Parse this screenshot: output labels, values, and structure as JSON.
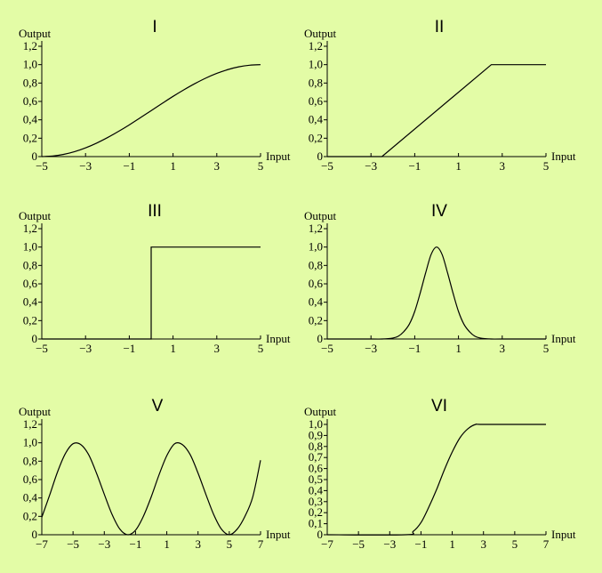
{
  "page": {
    "background": "#e3fca6"
  },
  "chart_data": [
    {
      "id": "I",
      "title": "I",
      "type": "line",
      "xlabel": "Input",
      "ylabel": "Output",
      "xlim": [
        -5,
        5
      ],
      "ylim": [
        0,
        1.2
      ],
      "x_ticks": [
        "-5",
        "-3",
        "-1",
        "1",
        "3",
        "5"
      ],
      "y_ticks": [
        "0",
        "0,2",
        "0,4",
        "0,6",
        "0,8",
        "1,0",
        "1,2"
      ],
      "x": [
        -5,
        -4.5,
        -4,
        -3.5,
        -3,
        -2.5,
        -2,
        -1.5,
        -1,
        -0.5,
        0,
        0.5,
        1,
        1.5,
        2,
        2.5,
        3,
        3.5,
        4,
        4.5,
        5
      ],
      "y": [
        0,
        0.006,
        0.024,
        0.054,
        0.095,
        0.146,
        0.206,
        0.273,
        0.345,
        0.422,
        0.5,
        0.578,
        0.655,
        0.727,
        0.794,
        0.854,
        0.905,
        0.946,
        0.976,
        0.994,
        1.0
      ]
    },
    {
      "id": "II",
      "title": "II",
      "type": "line",
      "xlabel": "Input",
      "ylabel": "Output",
      "xlim": [
        -5,
        5
      ],
      "ylim": [
        0,
        1.2
      ],
      "x_ticks": [
        "-5",
        "-3",
        "-1",
        "1",
        "3",
        "5"
      ],
      "y_ticks": [
        "0",
        "0,2",
        "0,4",
        "0,6",
        "0,8",
        "1,0",
        "1,2"
      ],
      "x": [
        -5,
        -2.5,
        2.5,
        5
      ],
      "y": [
        0,
        0,
        1.0,
        1.0
      ]
    },
    {
      "id": "III",
      "title": "III",
      "type": "line",
      "xlabel": "Input",
      "ylabel": "Output",
      "xlim": [
        -5,
        5
      ],
      "ylim": [
        0,
        1.2
      ],
      "x_ticks": [
        "-5",
        "-3",
        "-1",
        "1",
        "3",
        "5"
      ],
      "y_ticks": [
        "0",
        "0,2",
        "0,4",
        "0,6",
        "0,8",
        "1,0",
        "1,2"
      ],
      "x": [
        -5,
        0,
        0,
        5
      ],
      "y": [
        0,
        0,
        1.0,
        1.0
      ]
    },
    {
      "id": "IV",
      "title": "IV",
      "type": "line",
      "xlabel": "Input",
      "ylabel": "Output",
      "xlim": [
        -5,
        5
      ],
      "ylim": [
        0,
        1.2
      ],
      "x_ticks": [
        "-5",
        "-3",
        "-1",
        "1",
        "3",
        "5"
      ],
      "y_ticks": [
        "0",
        "0,2",
        "0,4",
        "0,6",
        "0,8",
        "1,0",
        "1,2"
      ],
      "x": [
        -5,
        -3,
        -2.5,
        -2,
        -1.75,
        -1.5,
        -1.25,
        -1,
        -0.75,
        -0.5,
        -0.25,
        0,
        0.25,
        0.5,
        0.75,
        1,
        1.25,
        1.5,
        1.75,
        2,
        2.5,
        3,
        5
      ],
      "y": [
        0,
        0,
        0,
        0.01,
        0.03,
        0.08,
        0.16,
        0.3,
        0.5,
        0.72,
        0.92,
        1.0,
        0.92,
        0.72,
        0.5,
        0.3,
        0.16,
        0.08,
        0.03,
        0.01,
        0,
        0,
        0
      ]
    },
    {
      "id": "V",
      "title": "V",
      "type": "line",
      "xlabel": "Input",
      "ylabel": "Output",
      "xlim": [
        -7,
        7
      ],
      "ylim": [
        0,
        1.2
      ],
      "x_ticks": [
        "-7",
        "-5",
        "-3",
        "-1",
        "1",
        "3",
        "5",
        "7"
      ],
      "y_ticks": [
        "0",
        "0,2",
        "0,4",
        "0,6",
        "0,8",
        "1,0",
        "1,2"
      ],
      "x": [
        -7,
        -6.5,
        -6,
        -5.5,
        -5,
        -4.5,
        -4,
        -3.5,
        -3,
        -2.5,
        -2,
        -1.5,
        -1,
        -0.5,
        0,
        0.5,
        1,
        1.5,
        2,
        2.5,
        3,
        3.5,
        4,
        4.5,
        5,
        5.5,
        6,
        6.5,
        7
      ],
      "y": [
        0.19,
        0.43,
        0.68,
        0.88,
        0.99,
        0.98,
        0.87,
        0.67,
        0.44,
        0.22,
        0.06,
        0.0,
        0.05,
        0.2,
        0.41,
        0.65,
        0.86,
        0.99,
        0.98,
        0.87,
        0.67,
        0.44,
        0.22,
        0.06,
        0.0,
        0.06,
        0.2,
        0.41,
        0.81
      ]
    },
    {
      "id": "VI",
      "title": "VI",
      "type": "line",
      "xlabel": "Input",
      "ylabel": "Output",
      "xlim": [
        -7,
        7
      ],
      "ylim": [
        0,
        1.0
      ],
      "x_ticks": [
        "-7",
        "-5",
        "-3",
        "-1",
        "1",
        "3",
        "5",
        "7"
      ],
      "y_ticks": [
        "0",
        "0,1",
        "0,2",
        "0,3",
        "0,4",
        "0,5",
        "0,6",
        "0,7",
        "0,8",
        "0,9",
        "1,0"
      ],
      "x": [
        -7,
        -2,
        -1.5,
        -1,
        -0.5,
        0,
        0.5,
        1,
        1.5,
        2,
        2.5,
        3,
        7
      ],
      "y": [
        0,
        0,
        0.03,
        0.11,
        0.25,
        0.41,
        0.59,
        0.75,
        0.88,
        0.96,
        1.0,
        1.0,
        1.0
      ]
    }
  ]
}
